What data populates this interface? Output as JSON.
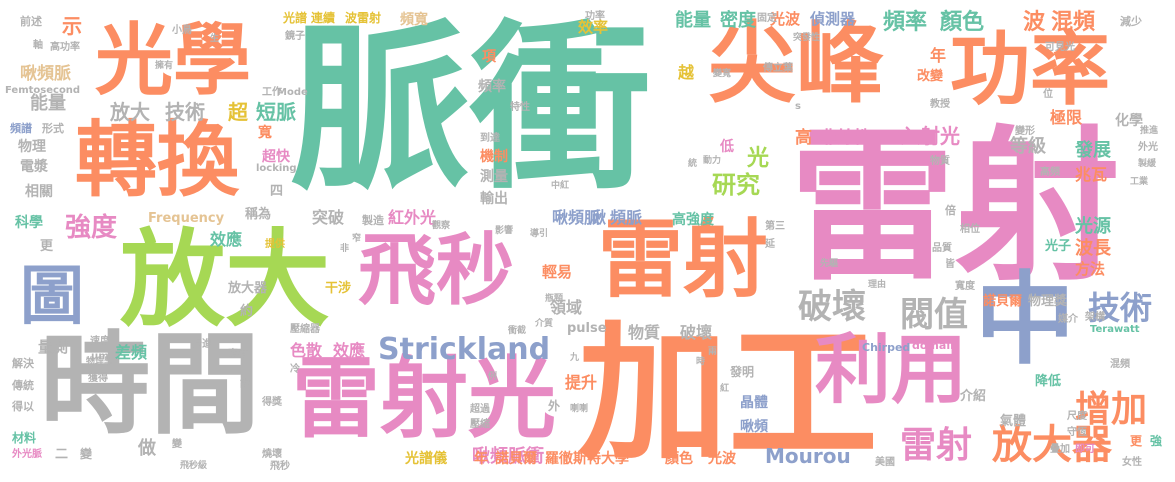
{
  "palette": {
    "green": "#66c2a5",
    "orange": "#fc8d62",
    "blue": "#8da0cb",
    "pink": "#e78ac3",
    "lime": "#a6d854",
    "yellow": "#ffd92f",
    "tan": "#e5c494",
    "gray": "#b3b3b3"
  },
  "words": {
    "w001": "脈衝",
    "w002": "雷射",
    "w003": "加工",
    "w004": "時間",
    "w005": "放大",
    "w006": "尖峰",
    "w007": "功率",
    "w008": "光學",
    "w009": "轉換",
    "w010": "飛秒",
    "w011": "雷射",
    "w012": "雷射光",
    "w013": "中",
    "w014": "利用",
    "w015": "圖",
    "w016": "Strickland",
    "w017": "破壞",
    "w018": "閥值",
    "w019": "技術",
    "w020": "增加",
    "w021": "雷射",
    "w022": "放大器",
    "w023": "研究",
    "w024": "強度",
    "w025": "頻率",
    "w026": "顏色",
    "w027": "波",
    "w028": "混頻",
    "w029": "能量",
    "w030": "密度",
    "w031": "光波",
    "w032": "偵測器",
    "w033": "效率",
    "w034": "頻寬",
    "w035": "光譜",
    "w036": "連續",
    "w037": "波雷射",
    "w038": "放大",
    "w039": "技術",
    "w040": "超",
    "w041": "短脈",
    "w042": "非線性",
    "w043": "入射光",
    "w044": "等級",
    "w045": "發展",
    "w046": "兆瓦",
    "w047": "光源",
    "w048": "波長",
    "w049": "方法",
    "w050": "光子",
    "w051": "紅外光",
    "w052": "啾頻脈",
    "w053": "突破",
    "w054": "效應",
    "w055": "色散",
    "w056": "效應",
    "w057": "啾頻脈衝",
    "w058": "Mourou",
    "w059": "光譜儀",
    "w060": "年",
    "w061": "諾貝爾",
    "w062": "羅徹斯特大學",
    "w063": "顏色",
    "w064": "光波",
    "w065": "物質",
    "w066": "破壞",
    "w067": "量測",
    "w068": "差頻",
    "w069": "提升",
    "w070": "領域",
    "w071": "輕易",
    "w072": "高強度",
    "w073": "發明",
    "w074": "晶體",
    "w075": "啾頻",
    "w076": "做",
    "w077": "放大器",
    "w078": "約",
    "w079": "干涉",
    "w080": "物理",
    "w081": "電漿",
    "w082": "相關",
    "w083": "科學",
    "w084": "更",
    "w085": "示",
    "w086": "啾頻脈",
    "w087": "能量",
    "w088": "頻譜",
    "w089": "形式",
    "w090": "機制",
    "w091": "測量",
    "w092": "輸出",
    "w093": "啾",
    "w094": "頻脈",
    "w095": "光",
    "w096": "低",
    "w097": "高",
    "w098": "頻率",
    "w099": "項",
    "w100": "越",
    "w101": "年",
    "w102": "改變",
    "w103": "極限",
    "w104": "化學",
    "w105": "諾貝爾",
    "w106": "物理獎",
    "w107": "介紹",
    "w108": "氣體",
    "w109": "降低",
    "w110": "材料",
    "w111": "二",
    "w112": "變",
    "w113": "外光脈",
    "w114": "得以",
    "w115": "傳統",
    "w116": "解決",
    "w117": "Frequency",
    "w118": "稱為",
    "w119": "四",
    "w120": "超快",
    "w121": "寬",
    "w122": "pulse",
    "w123": "domain",
    "w124": "Chirped",
    "w125": "Terawatt",
    "w126": "Femtosecond",
    "w127": "Mode",
    "w128": "locking",
    "w129": "更",
    "w130": "強",
    "w131": "女性",
    "w132": "美國",
    "w133": "疊加",
    "w134": "即可",
    "w135": "守恆",
    "w136": "尺度",
    "w137": "混頻",
    "w138": "製造",
    "w139": "提供",
    "w140": "速度",
    "w141": "前述",
    "w142": "高功率",
    "w143": "軸",
    "w144": "擁有",
    "w145": "小鳥",
    "w146": "鏡子",
    "w147": "工作",
    "w148": "功率",
    "w149": "固定",
    "w150": "傳立葉",
    "w151": "可見光",
    "w152": "減少",
    "w153": "教授",
    "w154": "位",
    "w155": "變形",
    "w156": "外光",
    "w157": "製緩",
    "w158": "工業",
    "w159": "高頻",
    "w160": "物質",
    "w161": "倍",
    "w162": "相位",
    "w163": "品質",
    "w164": "皆",
    "w165": "寬度",
    "w166": "媒介",
    "w167": "架構",
    "w168": "第三",
    "w169": "延",
    "w170": "先驅",
    "w171": "理由",
    "w172": "μm",
    "w173": "密度",
    "w174": "冷",
    "w175": "行進",
    "w176": "壓縮器",
    "w177": "獲得",
    "w178": "物理學",
    "w179": "得獎",
    "w180": "超過",
    "w181": "壓縮",
    "w182": "外",
    "w183": "燒壞",
    "w184": "飛秒",
    "w185": "影響",
    "w186": "導引",
    "w187": "中紅",
    "w188": "到達",
    "w189": "特性",
    "w190": "瓶頸",
    "w191": "衝截",
    "w192": "介質",
    "w193": "九",
    "w194": "兩",
    "w195": "紅",
    "w196": "時",
    "w197": "動力",
    "w198": "突發性",
    "w199": "變寬",
    "w200": "s",
    "w201": "推進",
    "w202": "觀察",
    "w203": "窄",
    "w204": "非",
    "w205": "例",
    "w206": "說",
    "w207": "飛秒級",
    "w208": "變",
    "w209": "喇喇",
    "w210": "統",
    "w211": "生"
  }
}
